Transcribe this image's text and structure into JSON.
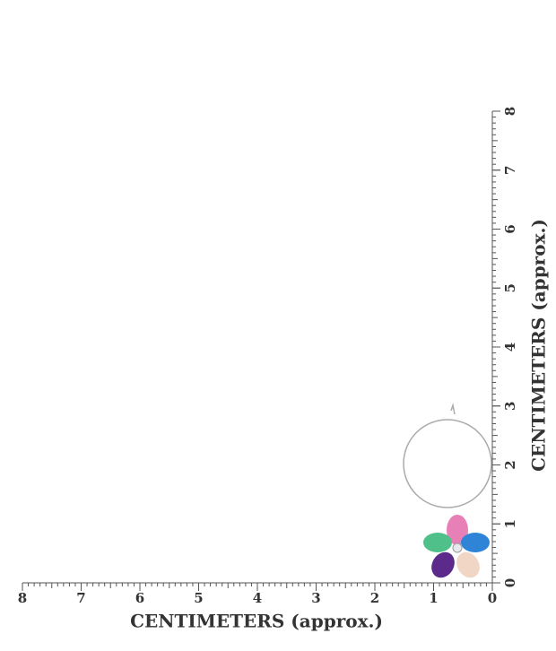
{
  "bottom_ruler": {
    "title": "CENTIMETERS (approx.)",
    "ticks": [
      8,
      7,
      6,
      5,
      4,
      3,
      2,
      1,
      0
    ]
  },
  "right_ruler": {
    "title": "CENTIMETERS (approx.)",
    "ticks": [
      0,
      1,
      2,
      3,
      4,
      5,
      6,
      7,
      8
    ]
  }
}
